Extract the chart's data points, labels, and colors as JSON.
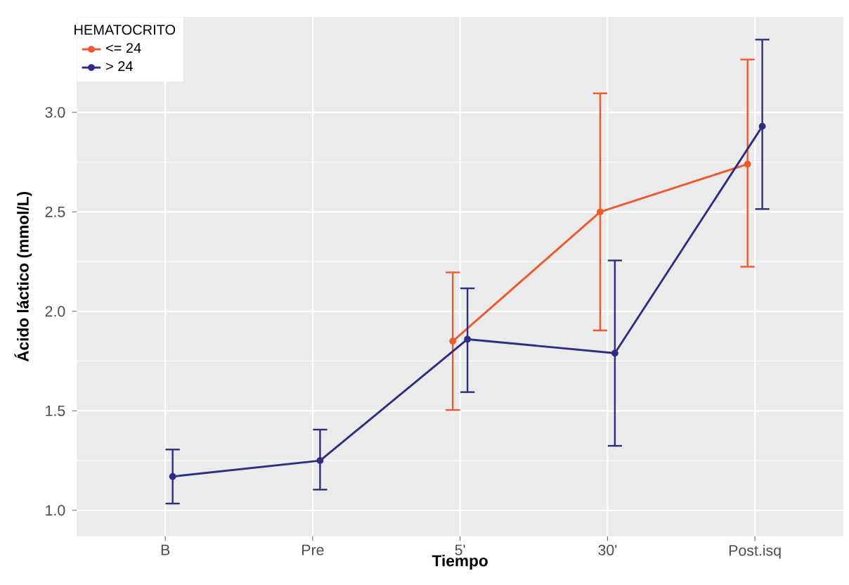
{
  "chart_data": {
    "type": "line",
    "xlabel": "Tiempo",
    "ylabel": "Ácido láctico (mmol/L)",
    "legend_title": "HEMATOCRITO",
    "categories": [
      "B",
      "Pre",
      "5'",
      "30'",
      "Post.isq"
    ],
    "series": [
      {
        "name": "<= 24",
        "color": "#f0592b",
        "values": [
          null,
          null,
          1.85,
          2.5,
          2.74
        ],
        "errors": [
          null,
          null,
          [
            1.5,
            2.2
          ],
          [
            1.9,
            3.1
          ],
          [
            2.22,
            3.27
          ]
        ]
      },
      {
        "name": "> 24",
        "color": "#2e2d84",
        "values": [
          1.17,
          1.25,
          1.86,
          1.79,
          2.93
        ],
        "errors": [
          [
            1.03,
            1.31
          ],
          [
            1.1,
            1.41
          ],
          [
            1.59,
            2.12
          ],
          [
            1.32,
            2.26
          ],
          [
            2.51,
            3.37
          ]
        ]
      }
    ],
    "ylim": [
      0.87,
      3.48
    ],
    "yticks": [
      {
        "value": 1,
        "label": "1.0"
      },
      1.5,
      {
        "value": 2,
        "label": "2.0"
      },
      2.5,
      {
        "value": 3,
        "label": "3.0"
      }
    ],
    "grid": true,
    "legend": "top left",
    "marker": "circle",
    "line_style": "solid"
  }
}
